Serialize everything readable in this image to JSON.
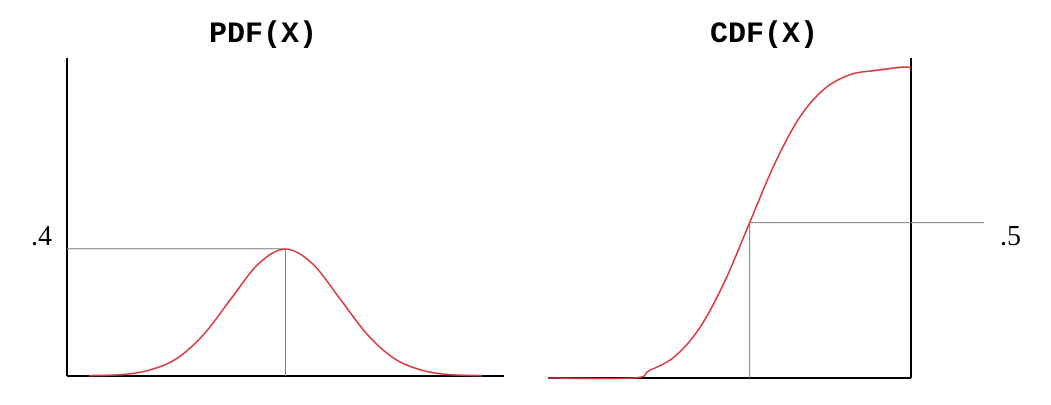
{
  "chart_data": [
    {
      "type": "line",
      "title": "PDF(X)",
      "y_tick_label": ".4",
      "y_marker": 0.4,
      "x_marker": 0,
      "xlim": [
        -4,
        4
      ],
      "ylim": [
        0,
        1
      ],
      "grid": false,
      "curve_color": "#d9363e",
      "guide_color": "#808080",
      "series": [
        {
          "x": [
            -3.6,
            -3.0,
            -2.5,
            -2.0,
            -1.5,
            -1.0,
            -0.5,
            0,
            0.5,
            1.0,
            1.5,
            2.0,
            2.5,
            3.0,
            3.6
          ],
          "values": [
            0.001,
            0.004,
            0.018,
            0.054,
            0.13,
            0.242,
            0.352,
            0.399,
            0.352,
            0.242,
            0.13,
            0.054,
            0.018,
            0.004,
            0.001
          ]
        }
      ]
    },
    {
      "type": "line",
      "title": "CDF(X)",
      "y_tick_label": ".5",
      "y_marker": 0.5,
      "x_marker": 0,
      "xlim": [
        -4,
        3.2
      ],
      "ylim": [
        0,
        1.03
      ],
      "grid": false,
      "curve_color": "#d9363e",
      "guide_color": "#808080",
      "series": [
        {
          "x": [
            -4.0,
            -2.3,
            -2.0,
            -1.5,
            -1.0,
            -0.5,
            0,
            0.5,
            1.0,
            1.5,
            2.0,
            2.5,
            3.0,
            3.2
          ],
          "values": [
            0.0,
            0.0,
            0.023,
            0.067,
            0.159,
            0.309,
            0.5,
            0.691,
            0.841,
            0.933,
            0.977,
            0.99,
            1.0,
            1.0
          ]
        }
      ]
    }
  ]
}
